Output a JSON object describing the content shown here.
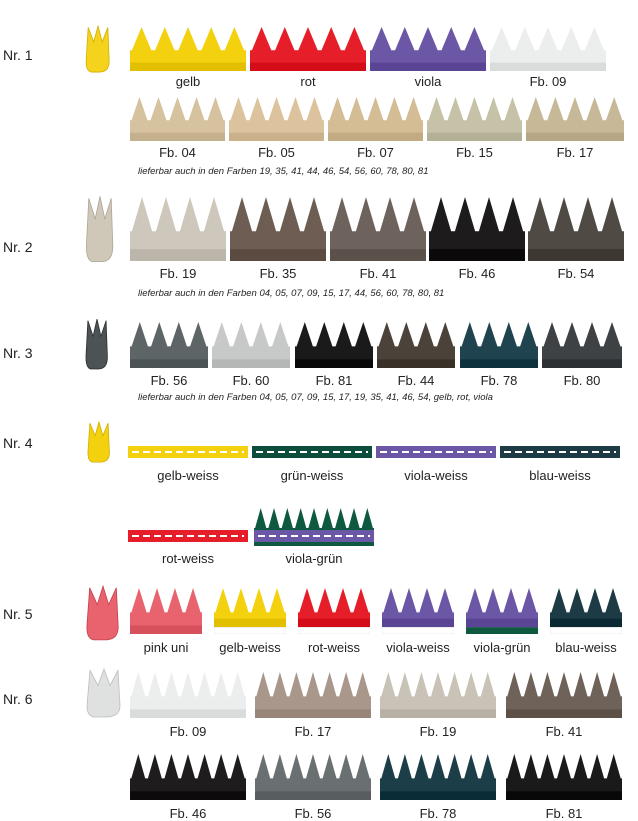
{
  "sections": [
    {
      "label": "Nr. 1",
      "profile_color": "#f5d21c",
      "swatches": [
        {
          "caption": "gelb",
          "color": "#f4d10f",
          "teeth": 5
        },
        {
          "caption": "rot",
          "color": "#e61e2a",
          "teeth": 5
        },
        {
          "caption": "viola",
          "color": "#6c56a6",
          "teeth": 5
        },
        {
          "caption": "Fb. 09",
          "color": "#eceeed",
          "teeth": 5
        },
        {
          "caption": "Fb. 04",
          "color": "#d7c29f",
          "teeth": 5
        },
        {
          "caption": "Fb. 05",
          "color": "#dcc39d",
          "teeth": 5
        },
        {
          "caption": "Fb. 07",
          "color": "#d4bc95",
          "teeth": 5
        },
        {
          "caption": "Fb. 15",
          "color": "#c6c2a7",
          "teeth": 5
        },
        {
          "caption": "Fb. 17",
          "color": "#c7b898",
          "teeth": 5
        }
      ],
      "note": "lieferbar auch in den Farben 19, 35, 41, 44, 46, 54, 56, 60, 78, 80, 81"
    },
    {
      "label": "Nr. 2",
      "profile_color": "#cfc8b9",
      "swatches": [
        {
          "caption": "Fb. 19",
          "color": "#cdc8bb",
          "teeth": 4
        },
        {
          "caption": "Fb. 35",
          "color": "#6e5d52",
          "teeth": 4
        },
        {
          "caption": "Fb. 41",
          "color": "#6e625c",
          "teeth": 4
        },
        {
          "caption": "Fb. 46",
          "color": "#1e1b1c",
          "teeth": 4
        },
        {
          "caption": "Fb. 54",
          "color": "#4f4a43",
          "teeth": 4
        }
      ],
      "note": "lieferbar auch in den Farben 04, 05, 07, 09, 15, 17, 44, 56, 60, 78, 80, 81"
    },
    {
      "label": "Nr. 3",
      "profile_color": "#4d5354",
      "swatches": [
        {
          "caption": "Fb. 56",
          "color": "#5d6566",
          "teeth": 4
        },
        {
          "caption": "Fb. 60",
          "color": "#c7c9c8",
          "teeth": 4
        },
        {
          "caption": "Fb. 81",
          "color": "#1a1a1a",
          "teeth": 4
        },
        {
          "caption": "Fb. 44",
          "color": "#4b4239",
          "teeth": 4
        },
        {
          "caption": "Fb. 78",
          "color": "#1f4450",
          "teeth": 4
        },
        {
          "caption": "Fb. 80",
          "color": "#3e4244",
          "teeth": 4
        }
      ],
      "note": "lieferbar auch in den Farben 04, 05, 07, 09, 15, 17, 19, 35, 41, 46, 54, gelb, rot, viola"
    },
    {
      "label": "Nr. 4",
      "profile_color": "#f4d10f",
      "swatches": [
        {
          "caption": "gelb-weiss",
          "color": "#f4d10f",
          "teeth": 9,
          "top": "#ffffff"
        },
        {
          "caption": "grün-weiss",
          "color": "#0e4c3b",
          "teeth": 9,
          "top": "#ffffff"
        },
        {
          "caption": "viola-weiss",
          "color": "#6c56a6",
          "teeth": 9,
          "top": "#ffffff"
        },
        {
          "caption": "blau-weiss",
          "color": "#1d3b45",
          "teeth": 9,
          "top": "#ffffff"
        },
        {
          "caption": "rot-weiss",
          "color": "#e61e2a",
          "teeth": 9,
          "top": "#ffffff"
        },
        {
          "caption": "viola-grün",
          "color": "#6c56a6",
          "teeth": 9,
          "top": "#0e5a40"
        }
      ]
    },
    {
      "label": "Nr. 5",
      "profile_color": "#e8636e",
      "swatches": [
        {
          "caption": "pink uni",
          "color": "#e8636e",
          "teeth": 4
        },
        {
          "caption": "gelb-weiss",
          "color": "#f4d10f",
          "teeth": 4,
          "base": "#ffffff"
        },
        {
          "caption": "rot-weiss",
          "color": "#e61e2a",
          "teeth": 4,
          "base": "#ffffff"
        },
        {
          "caption": "viola-weiss",
          "color": "#6c56a6",
          "teeth": 4,
          "base": "#ffffff"
        },
        {
          "caption": "viola-grün",
          "color": "#6c56a6",
          "teeth": 4,
          "base": "#0e5a40"
        },
        {
          "caption": "blau-weiss",
          "color": "#1d3b45",
          "teeth": 4,
          "base": "#ffffff"
        }
      ]
    },
    {
      "label": "Nr. 6",
      "profile_color": "#dfe1e0",
      "swatches": [
        {
          "caption": "Fb. 09",
          "color": "#eceeed",
          "teeth": 7
        },
        {
          "caption": "Fb. 17",
          "color": "#a8978a",
          "teeth": 7
        },
        {
          "caption": "Fb. 19",
          "color": "#c9c3b7",
          "teeth": 7
        },
        {
          "caption": "Fb. 41",
          "color": "#6f6259",
          "teeth": 7
        },
        {
          "caption": "Fb. 46",
          "color": "#1f1c1d",
          "teeth": 7
        },
        {
          "caption": "Fb. 56",
          "color": "#6a7071",
          "teeth": 7
        },
        {
          "caption": "Fb. 78",
          "color": "#1c3e48",
          "teeth": 7
        },
        {
          "caption": "Fb. 81",
          "color": "#1a1a1a",
          "teeth": 7
        }
      ]
    }
  ]
}
